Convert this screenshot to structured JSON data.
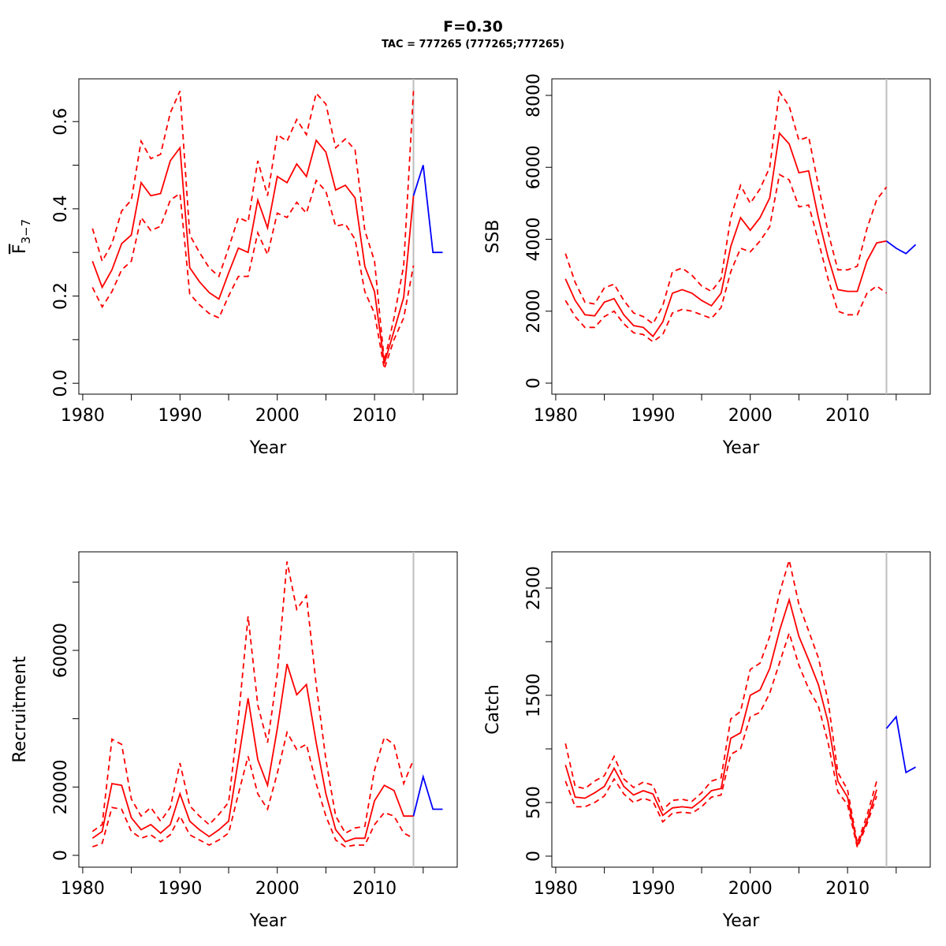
{
  "title": "F=0.30",
  "subtitle": "TAC = 777265 (777265;777265)",
  "colors": {
    "estimate": "#ff0000",
    "forecast": "#0000ff",
    "divider": "#bebebe"
  },
  "chart_data": [
    {
      "type": "line",
      "id": "f",
      "xlabel": "Year",
      "ylabel": "F",
      "ylabel_sub": "3−7",
      "xlim": [
        1979.6,
        2018.5
      ],
      "ylim": [
        -0.025,
        0.698
      ],
      "xticks": [
        1980,
        1985,
        1990,
        1995,
        2000,
        2005,
        2010,
        2015
      ],
      "xtick_labels": [
        "1980",
        "",
        "1990",
        "",
        "2000",
        "",
        "2010",
        ""
      ],
      "yticks": [
        0,
        0.1,
        0.2,
        0.3,
        0.4,
        0.5,
        0.6
      ],
      "ytick_labels": [
        "0.0",
        "",
        "0.2",
        "",
        "0.4",
        "",
        "0.6"
      ],
      "divider_year": 2014,
      "x": [
        1981,
        1982,
        1983,
        1984,
        1985,
        1986,
        1987,
        1988,
        1989,
        1990,
        1991,
        1992,
        1993,
        1994,
        1995,
        1996,
        1997,
        1998,
        1999,
        2000,
        2001,
        2002,
        2003,
        2004,
        2005,
        2006,
        2007,
        2008,
        2009,
        2010,
        2011,
        2012,
        2013,
        2014
      ],
      "series": [
        {
          "name": "median",
          "style": "solid",
          "values": [
            0.28,
            0.22,
            0.26,
            0.32,
            0.34,
            0.46,
            0.43,
            0.435,
            0.51,
            0.54,
            0.265,
            0.233,
            0.208,
            0.193,
            0.253,
            0.31,
            0.3,
            0.42,
            0.356,
            0.474,
            0.46,
            0.503,
            0.474,
            0.557,
            0.53,
            0.443,
            0.454,
            0.425,
            0.268,
            0.21,
            0.045,
            0.12,
            0.197,
            0.43
          ]
        },
        {
          "name": "upper",
          "style": "dashed",
          "values": [
            0.355,
            0.28,
            0.32,
            0.395,
            0.42,
            0.555,
            0.515,
            0.525,
            0.62,
            0.67,
            0.34,
            0.3,
            0.265,
            0.245,
            0.31,
            0.38,
            0.37,
            0.51,
            0.43,
            0.57,
            0.555,
            0.605,
            0.57,
            0.665,
            0.64,
            0.54,
            0.56,
            0.535,
            0.35,
            0.28,
            0.05,
            0.15,
            0.27,
            0.67
          ]
        },
        {
          "name": "lower",
          "style": "dashed",
          "values": [
            0.22,
            0.175,
            0.21,
            0.26,
            0.28,
            0.38,
            0.35,
            0.36,
            0.42,
            0.435,
            0.205,
            0.18,
            0.16,
            0.15,
            0.2,
            0.245,
            0.245,
            0.345,
            0.295,
            0.39,
            0.38,
            0.415,
            0.39,
            0.465,
            0.44,
            0.36,
            0.365,
            0.33,
            0.21,
            0.16,
            0.033,
            0.1,
            0.15,
            0.27
          ]
        }
      ],
      "forecast": {
        "x": [
          2014,
          2015,
          2016,
          2017
        ],
        "values": [
          0.43,
          0.5,
          0.3,
          0.3
        ]
      }
    },
    {
      "type": "line",
      "id": "ssb",
      "xlabel": "Year",
      "ylabel": "SSB",
      "xlim": [
        1979.6,
        2018.5
      ],
      "ylim": [
        -307,
        8460
      ],
      "xticks": [
        1980,
        1985,
        1990,
        1995,
        2000,
        2005,
        2010,
        2015
      ],
      "xtick_labels": [
        "1980",
        "",
        "1990",
        "",
        "2000",
        "",
        "2010",
        ""
      ],
      "yticks": [
        0,
        2000,
        4000,
        6000,
        8000
      ],
      "ytick_labels": [
        "0",
        "2000",
        "4000",
        "6000",
        "8000"
      ],
      "divider_year": 2014,
      "x": [
        1981,
        1982,
        1983,
        1984,
        1985,
        1986,
        1987,
        1988,
        1989,
        1990,
        1991,
        1992,
        1993,
        1994,
        1995,
        1996,
        1997,
        1998,
        1999,
        2000,
        2001,
        2002,
        2003,
        2004,
        2005,
        2006,
        2007,
        2008,
        2009,
        2010,
        2011,
        2012,
        2013,
        2014
      ],
      "series": [
        {
          "name": "median",
          "style": "solid",
          "values": [
            2900,
            2300,
            1900,
            1870,
            2250,
            2350,
            1900,
            1600,
            1550,
            1300,
            1700,
            2500,
            2600,
            2500,
            2300,
            2150,
            2500,
            3800,
            4600,
            4250,
            4600,
            5150,
            6950,
            6650,
            5850,
            5900,
            4600,
            3500,
            2600,
            2550,
            2550,
            3400,
            3900,
            3950
          ]
        },
        {
          "name": "upper",
          "style": "dashed",
          "values": [
            3600,
            2800,
            2250,
            2200,
            2650,
            2750,
            2300,
            1950,
            1850,
            1650,
            2150,
            3100,
            3200,
            3000,
            2700,
            2550,
            2900,
            4600,
            5500,
            5000,
            5400,
            6000,
            8100,
            7700,
            6750,
            6850,
            5500,
            4200,
            3150,
            3150,
            3250,
            4300,
            5100,
            5450
          ]
        },
        {
          "name": "lower",
          "style": "dashed",
          "values": [
            2300,
            1850,
            1550,
            1550,
            1850,
            2000,
            1650,
            1400,
            1350,
            1150,
            1350,
            1950,
            2050,
            2000,
            1900,
            1800,
            2100,
            3100,
            3750,
            3650,
            3950,
            4350,
            5800,
            5650,
            4900,
            4950,
            3950,
            2900,
            2000,
            1900,
            1900,
            2500,
            2700,
            2500
          ]
        }
      ],
      "forecast": {
        "x": [
          2014,
          2015,
          2016,
          2017
        ],
        "values": [
          3950,
          3750,
          3600,
          3850
        ]
      }
    },
    {
      "type": "line",
      "id": "recruitment",
      "xlabel": "Year",
      "ylabel": "Recruitment",
      "xlim": [
        1979.6,
        2018.5
      ],
      "ylim": [
        -3460,
        88850
      ],
      "xticks": [
        1980,
        1985,
        1990,
        1995,
        2000,
        2005,
        2010,
        2015
      ],
      "xtick_labels": [
        "1980",
        "",
        "1990",
        "",
        "2000",
        "",
        "2010",
        ""
      ],
      "yticks": [
        0,
        20000,
        40000,
        60000,
        80000
      ],
      "ytick_labels": [
        "0",
        "20000",
        "",
        "60000",
        ""
      ],
      "divider_year": 2014,
      "x": [
        1981,
        1982,
        1983,
        1984,
        1985,
        1986,
        1987,
        1988,
        1989,
        1990,
        1991,
        1992,
        1993,
        1994,
        1995,
        1996,
        1997,
        1998,
        1999,
        2000,
        2001,
        2002,
        2003,
        2004,
        2005,
        2006,
        2007,
        2008,
        2009,
        2010,
        2011,
        2012,
        2013,
        2014
      ],
      "series": [
        {
          "name": "median",
          "style": "solid",
          "values": [
            5000,
            7000,
            21000,
            20500,
            11000,
            7500,
            9000,
            6500,
            9000,
            18000,
            10000,
            7500,
            5500,
            7500,
            10000,
            28000,
            46000,
            28000,
            20500,
            37000,
            56000,
            47000,
            50000,
            33000,
            18000,
            7500,
            4000,
            5000,
            5000,
            16000,
            20500,
            19000,
            11500,
            11500
          ]
        },
        {
          "name": "upper",
          "style": "dashed",
          "values": [
            7000,
            9000,
            34000,
            32500,
            16500,
            11500,
            14000,
            10000,
            14000,
            27000,
            14500,
            11500,
            9000,
            12000,
            15500,
            40000,
            70000,
            44000,
            33000,
            53000,
            86000,
            72000,
            76000,
            50000,
            28000,
            11500,
            6500,
            8000,
            8500,
            25000,
            34500,
            32500,
            21000,
            28000
          ]
        },
        {
          "name": "lower",
          "style": "dashed",
          "values": [
            2500,
            3500,
            14000,
            13500,
            7000,
            5000,
            6000,
            4000,
            6000,
            11500,
            6000,
            4500,
            3000,
            4500,
            6500,
            18000,
            29000,
            18000,
            13500,
            24000,
            36000,
            31000,
            32500,
            21000,
            11500,
            4500,
            2500,
            3000,
            3000,
            9000,
            12500,
            11500,
            6500,
            5000
          ]
        }
      ],
      "forecast": {
        "x": [
          2014,
          2015,
          2016,
          2017
        ],
        "values": [
          11500,
          23000,
          13500,
          13500
        ]
      }
    },
    {
      "type": "line",
      "id": "catch",
      "xlabel": "Year",
      "ylabel": "Catch",
      "xlim": [
        1979.6,
        2018.5
      ],
      "ylim": [
        -103,
        2838
      ],
      "xticks": [
        1980,
        1985,
        1990,
        1995,
        2000,
        2005,
        2010,
        2015
      ],
      "xtick_labels": [
        "1980",
        "",
        "1990",
        "",
        "2000",
        "",
        "2010",
        ""
      ],
      "yticks": [
        0,
        500,
        1000,
        1500,
        2000,
        2500
      ],
      "ytick_labels": [
        "0",
        "500",
        "",
        "1500",
        "",
        "2500"
      ],
      "divider_year": 2014,
      "x": [
        1981,
        1982,
        1983,
        1984,
        1985,
        1986,
        1987,
        1988,
        1989,
        1990,
        1991,
        1992,
        1993,
        1994,
        1995,
        1996,
        1997,
        1998,
        1999,
        2000,
        2001,
        2002,
        2003,
        2004,
        2005,
        2006,
        2007,
        2008,
        2009,
        2010,
        2011,
        2012,
        2013
      ],
      "series": [
        {
          "name": "median",
          "style": "solid",
          "values": [
            850,
            550,
            540,
            590,
            650,
            820,
            650,
            570,
            610,
            580,
            380,
            450,
            460,
            450,
            520,
            610,
            630,
            1100,
            1150,
            1500,
            1550,
            1750,
            2100,
            2390,
            2050,
            1830,
            1600,
            1250,
            700,
            550,
            100,
            330,
            620
          ]
        },
        {
          "name": "upper",
          "style": "dashed",
          "values": [
            1050,
            650,
            630,
            700,
            750,
            930,
            720,
            640,
            690,
            660,
            430,
            520,
            530,
            510,
            590,
            700,
            730,
            1280,
            1350,
            1740,
            1800,
            2050,
            2450,
            2760,
            2350,
            2100,
            1850,
            1450,
            780,
            620,
            120,
            380,
            700
          ]
        },
        {
          "name": "lower",
          "style": "dashed",
          "values": [
            700,
            460,
            460,
            500,
            560,
            720,
            580,
            500,
            540,
            510,
            320,
            400,
            410,
            400,
            460,
            550,
            570,
            950,
            1000,
            1300,
            1340,
            1520,
            1800,
            2080,
            1780,
            1560,
            1400,
            1060,
            600,
            480,
            80,
            300,
            560
          ]
        }
      ],
      "forecast": {
        "x": [
          2014,
          2015,
          2016,
          2017
        ],
        "values": [
          1190,
          1300,
          780,
          830
        ]
      }
    }
  ]
}
